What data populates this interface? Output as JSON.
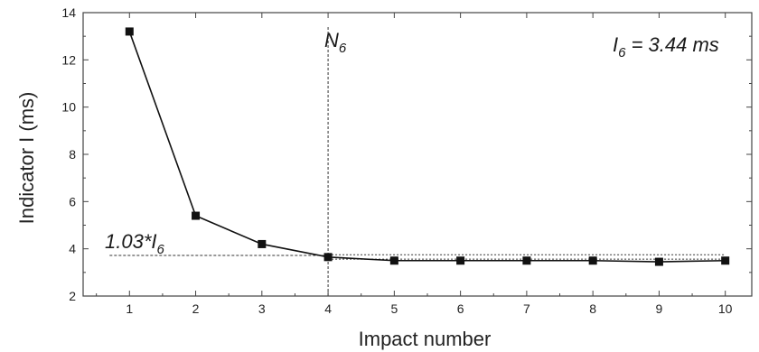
{
  "chart_data": {
    "type": "line",
    "xlabel": "Impact number",
    "ylabel": "Indicator I (ms)",
    "xlim": [
      0.3,
      10.4
    ],
    "ylim": [
      2,
      14
    ],
    "x_ticks": [
      1,
      2,
      3,
      4,
      5,
      6,
      7,
      8,
      9,
      10
    ],
    "y_ticks": [
      2,
      4,
      6,
      8,
      10,
      12,
      14
    ],
    "series": [
      {
        "x": [
          1,
          2,
          3,
          4,
          5,
          6,
          7,
          8,
          9,
          10
        ],
        "values": [
          13.2,
          5.4,
          4.2,
          3.65,
          3.5,
          3.5,
          3.5,
          3.5,
          3.45,
          3.5
        ]
      }
    ],
    "threshold_y": 3.72,
    "upper_dotted_y": 3.75,
    "lower_dotted_y": 3.56,
    "vertical_marker_x": 4,
    "annotations": {
      "threshold_label": "1.03*I",
      "threshold_label_sub": "6",
      "vertical_label": "N",
      "vertical_label_sub": "6",
      "value_label": "I",
      "value_label_sub": "6",
      "value_label_rest": " = 3.44 ms"
    },
    "grid": false,
    "legend": "none"
  }
}
